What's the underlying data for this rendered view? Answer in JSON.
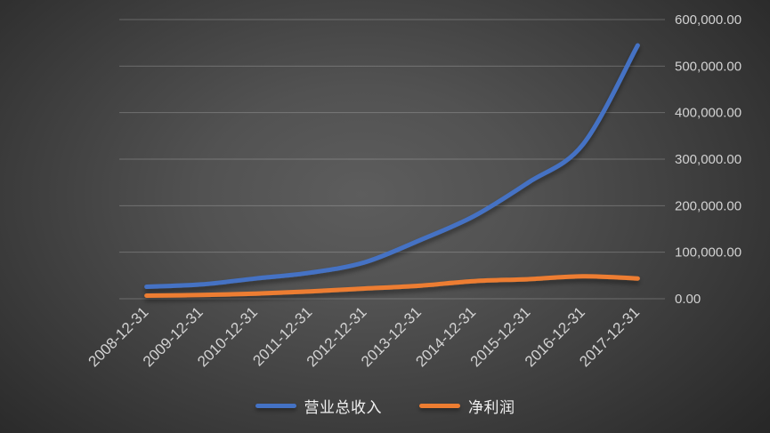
{
  "chart_data": {
    "type": "line",
    "title": "",
    "x": [
      "2008-12-31",
      "2009-12-31",
      "2010-12-31",
      "2011-12-31",
      "2012-12-31",
      "2013-12-31",
      "2014-12-31",
      "2015-12-31",
      "2016-12-31",
      "2017-12-31"
    ],
    "series": [
      {
        "name": "营业总收入",
        "color": "#4472C4",
        "values": [
          25800,
          30800,
          43600,
          55900,
          78400,
          125400,
          177500,
          250100,
          332000,
          544500
        ]
      },
      {
        "name": "净利润",
        "color": "#ED7D31",
        "values": [
          6800,
          8100,
          11100,
          15700,
          21900,
          27900,
          37900,
          42100,
          48400,
          43500
        ]
      }
    ],
    "y_axis": {
      "min": 0,
      "max": 600000,
      "step": 100000,
      "side": "right",
      "tick_labels": [
        "0.00",
        "100,000.00",
        "200,000.00",
        "300,000.00",
        "400,000.00",
        "500,000.00",
        "600,000.00"
      ]
    },
    "x_axis": {
      "label_rotation_deg": -45
    },
    "grid": true,
    "smooth_lines": true,
    "legend_position": "bottom",
    "colors": {
      "background_center": "#5a5a5a",
      "background_edge": "#262626",
      "gridline": "rgba(217,217,217,0.28)",
      "axis_text": "#d2d2d2",
      "legend_text": "#efefef"
    }
  }
}
